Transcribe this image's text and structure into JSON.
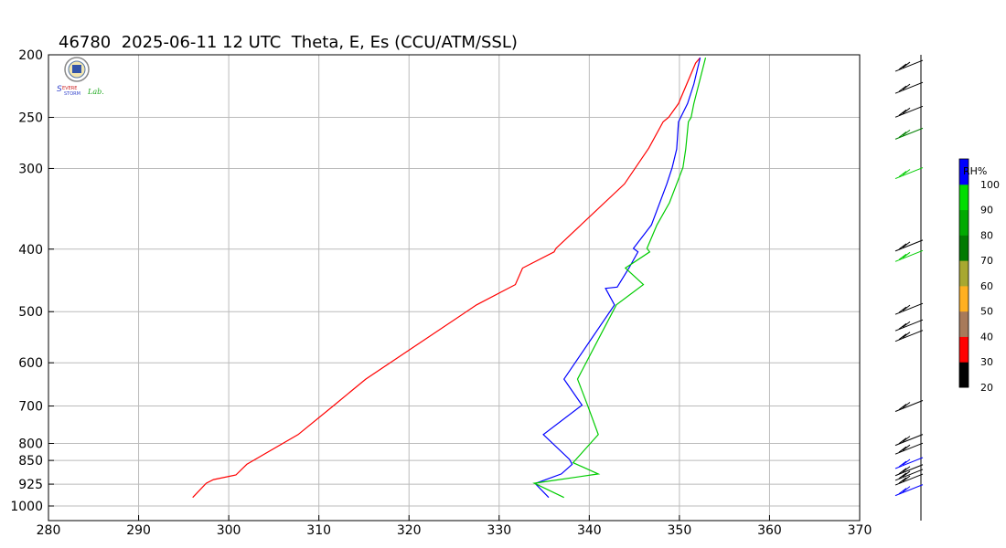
{
  "title": "46780  2025-06-11 12 UTC  Theta, E, Es (CCU/ATM/SSL)",
  "logo_text": "Severe Storm Lab.",
  "colors": {
    "theta": "#ff0000",
    "theta_e": "#0000ff",
    "theta_es": "#00cc00",
    "grid": "#bbbbbb"
  },
  "chart_data": {
    "type": "line",
    "title": "46780  2025-06-11 12 UTC  Theta, E, Es (CCU/ATM/SSL)",
    "xlabel": "",
    "ylabel": "",
    "xlim": [
      280,
      370
    ],
    "ylim": [
      1000,
      200
    ],
    "y_scale": "log",
    "grid": true,
    "x_ticks": [
      280,
      290,
      300,
      310,
      320,
      330,
      340,
      350,
      360,
      370
    ],
    "y_ticks": [
      200,
      250,
      300,
      400,
      500,
      600,
      700,
      800,
      850,
      925,
      1000
    ],
    "series": [
      {
        "color": "#ff0000",
        "points": [
          [
            296.0,
            970
          ],
          [
            297.5,
            922
          ],
          [
            298.3,
            910
          ],
          [
            300.8,
            895
          ],
          [
            302.0,
            862
          ],
          [
            302.3,
            857
          ],
          [
            307.7,
            775
          ],
          [
            311.7,
            698
          ],
          [
            315.2,
            636
          ],
          [
            327.5,
            488
          ],
          [
            331.8,
            454
          ],
          [
            332.6,
            428
          ],
          [
            336.1,
            404
          ],
          [
            336.3,
            399
          ],
          [
            343.9,
            317
          ],
          [
            346.6,
            279
          ],
          [
            348.2,
            254
          ],
          [
            348.8,
            250
          ],
          [
            349.9,
            238
          ],
          [
            351.8,
            206
          ],
          [
            352.3,
            202
          ]
        ]
      },
      {
        "color": "#0000ff",
        "points": [
          [
            335.5,
            970
          ],
          [
            334.0,
            923
          ],
          [
            336.9,
            892
          ],
          [
            338.1,
            862
          ],
          [
            337.8,
            847
          ],
          [
            334.9,
            775
          ],
          [
            339.2,
            698
          ],
          [
            337.2,
            636
          ],
          [
            342.8,
            488
          ],
          [
            341.8,
            460
          ],
          [
            343.1,
            458
          ],
          [
            344.4,
            428
          ],
          [
            345.4,
            404
          ],
          [
            344.9,
            399
          ],
          [
            346.9,
            367
          ],
          [
            348.6,
            317
          ],
          [
            349.2,
            299
          ],
          [
            349.7,
            280
          ],
          [
            349.9,
            254
          ],
          [
            350.9,
            238
          ],
          [
            351.6,
            222
          ],
          [
            352.3,
            202
          ]
        ]
      },
      {
        "color": "#00cc00",
        "points": [
          [
            337.2,
            970
          ],
          [
            333.9,
            922
          ],
          [
            341.0,
            892
          ],
          [
            338.2,
            857
          ],
          [
            341.0,
            775
          ],
          [
            339.8,
            698
          ],
          [
            338.7,
            636
          ],
          [
            343.0,
            488
          ],
          [
            346.0,
            454
          ],
          [
            344.0,
            428
          ],
          [
            346.7,
            404
          ],
          [
            346.4,
            399
          ],
          [
            347.5,
            367
          ],
          [
            348.9,
            339
          ],
          [
            350.4,
            299
          ],
          [
            350.7,
            280
          ],
          [
            351.0,
            254
          ],
          [
            351.3,
            250
          ],
          [
            351.6,
            238
          ],
          [
            352.9,
            202
          ]
        ]
      }
    ],
    "wind_barbs": {
      "colors_by_level": [
        {
          "p": 208,
          "color": "#000000"
        },
        {
          "p": 225,
          "color": "#000000"
        },
        {
          "p": 245,
          "color": "#000000"
        },
        {
          "p": 265,
          "color": "#008000"
        },
        {
          "p": 305,
          "color": "#00cc00"
        },
        {
          "p": 395,
          "color": "#000000"
        },
        {
          "p": 410,
          "color": "#00cc00"
        },
        {
          "p": 495,
          "color": "#000000"
        },
        {
          "p": 525,
          "color": "#000000"
        },
        {
          "p": 545,
          "color": "#000000"
        },
        {
          "p": 700,
          "color": "#000000"
        },
        {
          "p": 790,
          "color": "#000000"
        },
        {
          "p": 815,
          "color": "#000000"
        },
        {
          "p": 858,
          "color": "#0000ff"
        },
        {
          "p": 880,
          "color": "#000000"
        },
        {
          "p": 895,
          "color": "#000000"
        },
        {
          "p": 910,
          "color": "#000000"
        },
        {
          "p": 945,
          "color": "#0000ff"
        }
      ]
    },
    "colorbar": {
      "label": "RH%",
      "ticks": [
        20,
        30,
        40,
        50,
        60,
        70,
        80,
        90,
        100
      ],
      "bands": [
        "#000000",
        "#ff0000",
        "#a87a5a",
        "#ffb020",
        "#a8a830",
        "#007a00",
        "#00aa00",
        "#00dd00",
        "#0000ff"
      ]
    }
  }
}
